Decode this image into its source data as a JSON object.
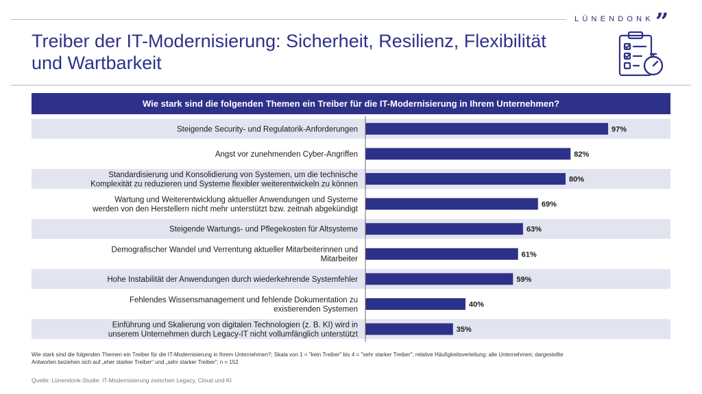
{
  "brand": {
    "name": "LÜNENDONK",
    "quote_mark": "”"
  },
  "title_line1": "Treiber der IT-Modernisierung: Sicherheit, Resilienz, Flexibilität",
  "title_line2": "und Wartbarkeit",
  "title_icon": "checklist-stopwatch-icon",
  "question": "Wie stark sind die folgenden Themen ein Treiber für die IT-Modernisierung in Ihrem Unternehmen?",
  "colors": {
    "primary": "#2e3189",
    "band": "#e2e5f0",
    "rule": "#b9b9bf"
  },
  "chart_data": {
    "type": "bar",
    "orientation": "horizontal",
    "value_suffix": "%",
    "xlim": [
      0,
      100
    ],
    "grid": false,
    "categories": [
      [
        "Steigende Security- und Regulatorik-Anforderungen"
      ],
      [
        "Angst vor zunehmenden Cyber-Angriffen"
      ],
      [
        "Standardisierung und Konsolidierung von Systemen, um die technische",
        "Komplexität zu reduzieren und Systeme flexibler weiterentwickeln zu können"
      ],
      [
        "Wartung und Weiterentwicklung aktueller Anwendungen und Systeme",
        "werden von den Herstellern nicht mehr unterstützt bzw. zeitnah abgekündigt"
      ],
      [
        "Steigende Wartungs- und Pflegekosten für Altsysteme"
      ],
      [
        "Demografischer Wandel und Verrentung aktueller Mitarbeiterinnen und",
        "Mitarbeiter"
      ],
      [
        "Hohe Instabilität der Anwendungen durch wiederkehrende Systemfehler"
      ],
      [
        "Fehlendes Wissensmanagement und fehlende Dokumentation zu",
        "existierenden Systemen"
      ],
      [
        "Einführung und Skalierung von digitalen Technologien (z. B. KI) wird in",
        "unserem Unternehmen durch Legacy-IT nicht vollumfänglich unterstützt"
      ]
    ],
    "values": [
      97,
      82,
      80,
      69,
      63,
      61,
      59,
      40,
      35
    ]
  },
  "footnote_line1": "Wie stark sind die folgenden Themen ein Treiber für die IT-Modernisierung in Ihrem Unternehmen?; Skala von 1 = \"kein Treiber\" bis 4 = \"sehr starker Treiber\"; relative Häufigkeitsverteilung; alle Unternehmen; dargestellte",
  "footnote_line2": "Antworten beziehen sich auf „eher starker Treiber“ und „sehr starker Treiber“; n = 152",
  "source": "Quelle: Lünendonk-Studie: IT-Modernisierung zwischen Legacy, Cloud und KI"
}
